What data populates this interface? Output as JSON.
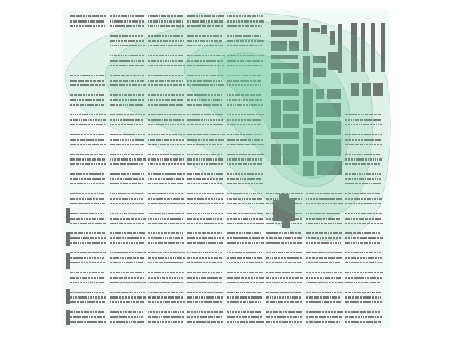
{
  "map": {
    "kind": "urban-density-heatmap",
    "colors": {
      "background": "#ffffff",
      "ground": "#f1faf7",
      "building": "#7a7a7a",
      "large_building": "#6e6e6e",
      "contour_fill": "#6cc79a",
      "contour_stroke": "#4f9c78"
    },
    "contour_levels": [
      "outer",
      "second",
      "third",
      "inner"
    ],
    "district_layout": [
      "residential-grid-west",
      "commercial-core-northeast",
      "residential-grid-south"
    ]
  }
}
